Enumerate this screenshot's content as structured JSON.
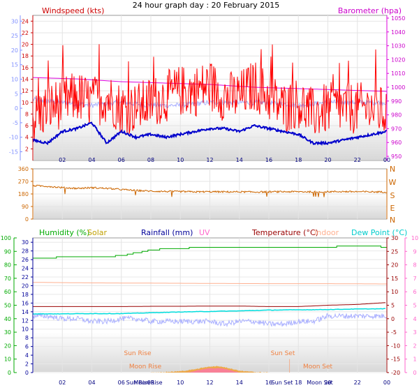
{
  "title": "24 hour graph day : 20 February 2015",
  "x_ticks": [
    "02",
    "04",
    "06",
    "08",
    "10",
    "12",
    "14",
    "16",
    "18",
    "20",
    "22",
    "00"
  ],
  "panel1": {
    "label_left": "Windspeed (kts)",
    "label_right": "Barometer (hpa)",
    "wind_ticks": [
      "2",
      "4",
      "6",
      "8",
      "10",
      "12",
      "14",
      "16",
      "18",
      "20",
      "22",
      "24"
    ],
    "temp_ticks": [
      "-15",
      "-10",
      "-5",
      "0",
      "5",
      "10",
      "15",
      "20",
      "25",
      "30"
    ],
    "baro_ticks": [
      "950",
      "960",
      "970",
      "980",
      "990",
      "1000",
      "1010",
      "1020",
      "1030",
      "1040",
      "1050"
    ]
  },
  "panel2": {
    "dir_ticks": [
      "0",
      "90",
      "180",
      "270",
      "360"
    ],
    "compass_labels": [
      "N",
      "W",
      "S",
      "E",
      "N"
    ]
  },
  "panel3": {
    "label_humidity": "Humidity (%)",
    "label_solar": "Solar",
    "label_rainfall": "Rainfall (mm)",
    "label_uv": "UV",
    "label_temperature": "Temperature (°C)",
    "label_indoor": "Indoor",
    "label_dewpoint": "Dew Point (°C)",
    "humidity_ticks": [
      "0",
      "10",
      "20",
      "30",
      "40",
      "50",
      "60",
      "70",
      "80",
      "90",
      "100"
    ],
    "rain_ticks": [
      "0",
      "2",
      "4",
      "6",
      "8",
      "10",
      "12",
      "14",
      "16",
      "18",
      "20",
      "22",
      "24",
      "26",
      "28",
      "30"
    ],
    "temp_ticks": [
      "-20",
      "-15",
      "-10",
      "-5",
      "0",
      "5",
      "10",
      "15",
      "20",
      "25",
      "30"
    ],
    "uv_ticks": [
      "0",
      "1",
      "2",
      "3",
      "4",
      "5",
      "6",
      "7",
      "8",
      "9",
      "10"
    ],
    "sun_rise": "Sun Rise",
    "sun_set": "Sun Set",
    "moon_rise": "Moon Rise",
    "moon_set": "Moon Set",
    "bottom_sun_rise": "Sun Rise",
    "bottom_sun_set": "Sun Set",
    "bottom_moon_rise": "Moon Rise",
    "bottom_moon_set": "Moon Set"
  },
  "colors": {
    "wind": "#ff0000",
    "gust": "#cc0000",
    "baro": "#dd00dd",
    "temp_blue": "#0000cc",
    "lavender": "#aab0ff",
    "direction": "#cc6600",
    "humidity": "#00aa00",
    "solar": "#f0a030",
    "rainfall": "#000099",
    "uv": "#ff66cc",
    "temperature": "#990000",
    "indoor": "#ffb090",
    "dewpoint": "#00dddd",
    "temp_axis_left": "#8090ff",
    "uv_axis": "#ff66cc"
  },
  "chart_data": [
    {
      "type": "line",
      "title": "24 hour graph day : 20 February 2015",
      "x_range_hours": [
        0,
        24
      ],
      "series": [
        {
          "name": "Windspeed (kts)",
          "axis": "left",
          "ylim": [
            0,
            25
          ],
          "x": [
            0,
            1,
            2,
            3,
            4,
            5,
            6,
            7,
            8,
            9,
            10,
            11,
            12,
            13,
            14,
            15,
            16,
            17,
            18,
            19,
            20,
            21,
            22,
            23,
            24
          ],
          "values": [
            7,
            9,
            10,
            11,
            10,
            11,
            9,
            9,
            10,
            11,
            12,
            12,
            13,
            11,
            11,
            13,
            11,
            9,
            10,
            8,
            9,
            9,
            9,
            9,
            8
          ]
        },
        {
          "name": "Barometer (hpa)",
          "axis": "right",
          "ylim": [
            947,
            1052
          ],
          "x": [
            0,
            3,
            6,
            9,
            12,
            15,
            18,
            21,
            24
          ],
          "values": [
            1007,
            1006,
            1004,
            1003,
            1002,
            1000,
            999,
            998,
            997
          ]
        },
        {
          "axis": "left-temp",
          "ylim": [
            -18,
            32
          ],
          "x": [
            0,
            1,
            2,
            3,
            4,
            5,
            6,
            7,
            8,
            9,
            10,
            11,
            12,
            13,
            14,
            15,
            16,
            17,
            18,
            19,
            20,
            21,
            22,
            23,
            24
          ],
          "values": [
            -11,
            -12,
            -8,
            -7,
            -5,
            -12,
            -8,
            -10,
            -9,
            -10,
            -9,
            -8,
            -7,
            -7,
            -8,
            -6,
            -7,
            -8,
            -9,
            -12,
            -12,
            -11,
            -10,
            -9,
            -8
          ]
        },
        {
          "axis": "left-temp",
          "ylim": [
            -18,
            32
          ],
          "x": [
            0,
            2,
            4,
            6,
            8,
            10,
            12,
            14,
            16,
            18,
            20,
            22,
            24
          ],
          "values": [
            3,
            2,
            1,
            2,
            1,
            1,
            2,
            2,
            2,
            1,
            2,
            2,
            2
          ]
        }
      ]
    },
    {
      "type": "line",
      "ylabel": "",
      "ylim": [
        0,
        360
      ],
      "series": [
        {
          "axis": "left",
          "x": [
            0,
            1,
            2,
            3,
            4,
            5,
            6,
            7,
            8,
            9,
            10,
            11,
            12,
            13,
            14,
            15,
            16,
            17,
            18,
            19,
            20,
            21,
            22,
            23,
            24
          ],
          "values": [
            240,
            235,
            225,
            220,
            225,
            220,
            212,
            205,
            200,
            198,
            197,
            195,
            196,
            195,
            195,
            194,
            195,
            196,
            196,
            195,
            196,
            197,
            196,
            195,
            194
          ]
        }
      ]
    },
    {
      "type": "line",
      "series": [
        {
          "name": "Humidity (%)",
          "axis": "left",
          "ylim": [
            0,
            100
          ],
          "x": [
            0,
            1,
            2,
            3,
            4,
            5,
            6,
            7,
            8,
            9,
            10,
            11,
            12,
            13,
            14,
            15,
            16,
            17,
            18,
            19,
            20,
            21,
            22,
            23,
            24
          ],
          "values": [
            85,
            85,
            86,
            86,
            86,
            86,
            87,
            89,
            91,
            92,
            92,
            93,
            93,
            93,
            93,
            93,
            93,
            93,
            93,
            93,
            93,
            94,
            94,
            94,
            93
          ]
        },
        {
          "name": "Temperature (°C)",
          "axis": "right",
          "ylim": [
            -20,
            30
          ],
          "x": [
            0,
            2,
            4,
            6,
            8,
            10,
            12,
            14,
            16,
            18,
            20,
            22,
            24
          ],
          "values": [
            4.5,
            4.5,
            4.5,
            4.5,
            4.6,
            4.6,
            4.7,
            4.7,
            4.5,
            4.5,
            5.0,
            5.3,
            6.0
          ]
        },
        {
          "name": "Dew Point (°C)",
          "axis": "right",
          "ylim": [
            -20,
            30
          ],
          "x": [
            0,
            2,
            4,
            6,
            8,
            10,
            12,
            14,
            16,
            18,
            20,
            22,
            24
          ],
          "values": [
            1.8,
            1.8,
            1.9,
            1.9,
            2.2,
            2.5,
            2.7,
            2.9,
            3.2,
            3.3,
            3.4,
            3.6,
            3.7
          ]
        },
        {
          "name": "Indoor",
          "axis": "right",
          "ylim": [
            -20,
            30
          ],
          "x": [
            0,
            4,
            8,
            12,
            16,
            20,
            24
          ],
          "values": [
            13.5,
            13.3,
            13.2,
            13.1,
            13.0,
            13.0,
            12.9
          ]
        },
        {
          "axis": "left-temp",
          "ylim": [
            -20,
            30
          ],
          "x": [
            0,
            1,
            2,
            3,
            4,
            5,
            6,
            7,
            8,
            9,
            10,
            11,
            12,
            13,
            14,
            15,
            16,
            17,
            18,
            19,
            20,
            21,
            22,
            23,
            24
          ],
          "values": [
            1,
            1,
            0,
            0,
            -1,
            -1,
            0,
            0,
            -1,
            -1,
            -1,
            -1,
            -1,
            -2,
            -1,
            -1,
            -2,
            -2,
            -1,
            -1,
            1,
            1,
            1,
            1,
            1
          ]
        },
        {
          "name": "Solar",
          "axis": "right",
          "ylim": [
            -20,
            30
          ],
          "x": [
            8.0,
            9.0,
            10.0,
            11.0,
            11.5,
            12.0,
            12.5,
            13.0,
            13.5,
            14.0,
            15.0,
            16.0
          ],
          "values": [
            -20,
            -19.8,
            -19.5,
            -18.8,
            -18.2,
            -17.8,
            -17.6,
            -18.0,
            -18.6,
            -19.3,
            -19.8,
            -20
          ]
        },
        {
          "name": "UV",
          "axis": "right",
          "ylim": [
            -20,
            30
          ],
          "x": [
            10.5,
            11.5,
            12.0,
            12.5,
            13.0,
            13.5,
            14.0
          ],
          "values": [
            -20,
            -18.8,
            -18.4,
            -18.4,
            -18.6,
            -19.3,
            -20
          ]
        }
      ],
      "events": {
        "sun_rise_hour": 7.3,
        "sun_set_hour": 17.4,
        "moon_rise_hour": 8.0,
        "moon_set_hour": 19.6
      }
    }
  ]
}
